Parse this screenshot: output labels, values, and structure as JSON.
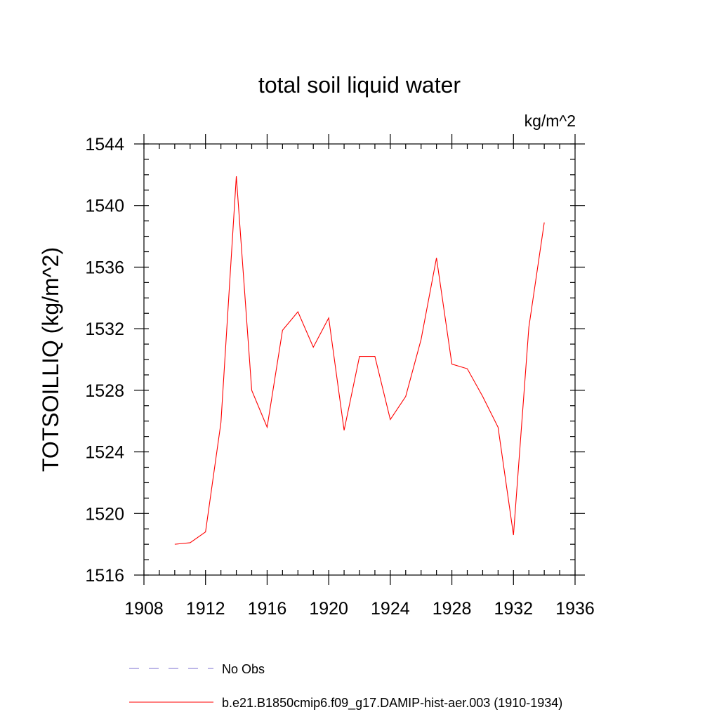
{
  "chart_data": {
    "type": "line",
    "title": "total soil liquid water",
    "units_label": "kg/m^2",
    "xlabel": "",
    "ylabel": "TOTSOILLIQ  (kg/m^2)",
    "xlim": [
      1908,
      1936
    ],
    "ylim": [
      1516,
      1544
    ],
    "x_ticks": [
      "1908",
      "1912",
      "1916",
      "1920",
      "1924",
      "1928",
      "1932",
      "1936"
    ],
    "y_ticks": [
      "1516",
      "1520",
      "1524",
      "1528",
      "1532",
      "1536",
      "1540",
      "1544"
    ],
    "grid": false,
    "legend_position": "bottom",
    "series": [
      {
        "name": "b.e21.B1850cmip6.f09_g17.DAMIP-hist-aer.003 (1910-1934)",
        "color": "#ff0000",
        "style": "solid",
        "x": [
          1910,
          1911,
          1912,
          1913,
          1914,
          1915,
          1916,
          1917,
          1918,
          1919,
          1920,
          1921,
          1922,
          1923,
          1924,
          1925,
          1926,
          1927,
          1928,
          1929,
          1930,
          1931,
          1932,
          1933,
          1934
        ],
        "values": [
          1518.0,
          1518.1,
          1518.8,
          1525.9,
          1541.9,
          1528.0,
          1525.6,
          1531.9,
          1533.1,
          1530.8,
          1532.7,
          1525.4,
          1530.2,
          1530.2,
          1526.1,
          1527.6,
          1531.3,
          1536.6,
          1529.7,
          1529.4,
          1527.6,
          1525.6,
          1518.6,
          1532.1,
          1538.9
        ]
      }
    ],
    "legend": [
      {
        "label": "No Obs",
        "color": "#7b6fd0",
        "style": "dashed"
      },
      {
        "label": "b.e21.B1850cmip6.f09_g17.DAMIP-hist-aer.003 (1910-1934)",
        "color": "#ff0000",
        "style": "solid"
      }
    ]
  }
}
